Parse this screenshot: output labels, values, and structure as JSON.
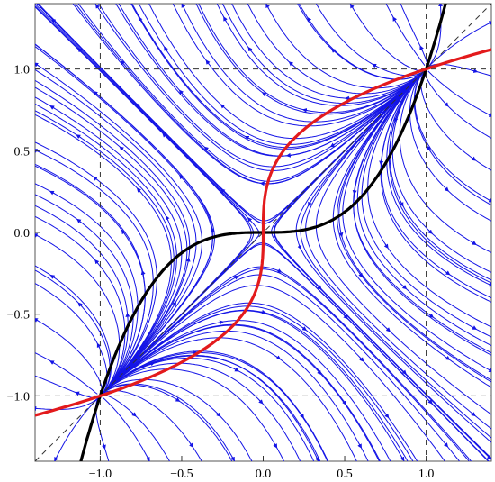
{
  "chart_data": {
    "type": "stream",
    "title": "",
    "xlabel": "",
    "ylabel": "",
    "xlim": [
      -1.4,
      1.4
    ],
    "ylim": [
      -1.4,
      1.4
    ],
    "x_ticks": [
      -1.0,
      -0.5,
      0.0,
      0.5,
      1.0
    ],
    "y_ticks": [
      -1.0,
      -0.5,
      0.0,
      0.5,
      1.0
    ],
    "x_tick_labels": [
      "−1.0",
      "−0.5",
      "0.0",
      "0.5",
      "1.0"
    ],
    "y_tick_labels": [
      "−1.0",
      "−0.5",
      "0.0",
      "0.5",
      "1.0"
    ],
    "grid": false,
    "vector_field": {
      "dx": "x^3 - y",
      "dy": "y^3 - x"
    },
    "fixed_points": [
      [
        -1,
        -1
      ],
      [
        0,
        0
      ],
      [
        1,
        1
      ]
    ],
    "reference_lines": {
      "vertical_dashed": [
        -1,
        1
      ],
      "horizontal_dashed": [
        -1,
        1
      ],
      "diagonal_dashed": "y = x"
    },
    "nullcline_curves": [
      {
        "label": "y = x^3",
        "color": "#000000"
      },
      {
        "label": "x = y^3",
        "color": "#e31a1c"
      }
    ],
    "streamline_color": "#1414e6"
  }
}
